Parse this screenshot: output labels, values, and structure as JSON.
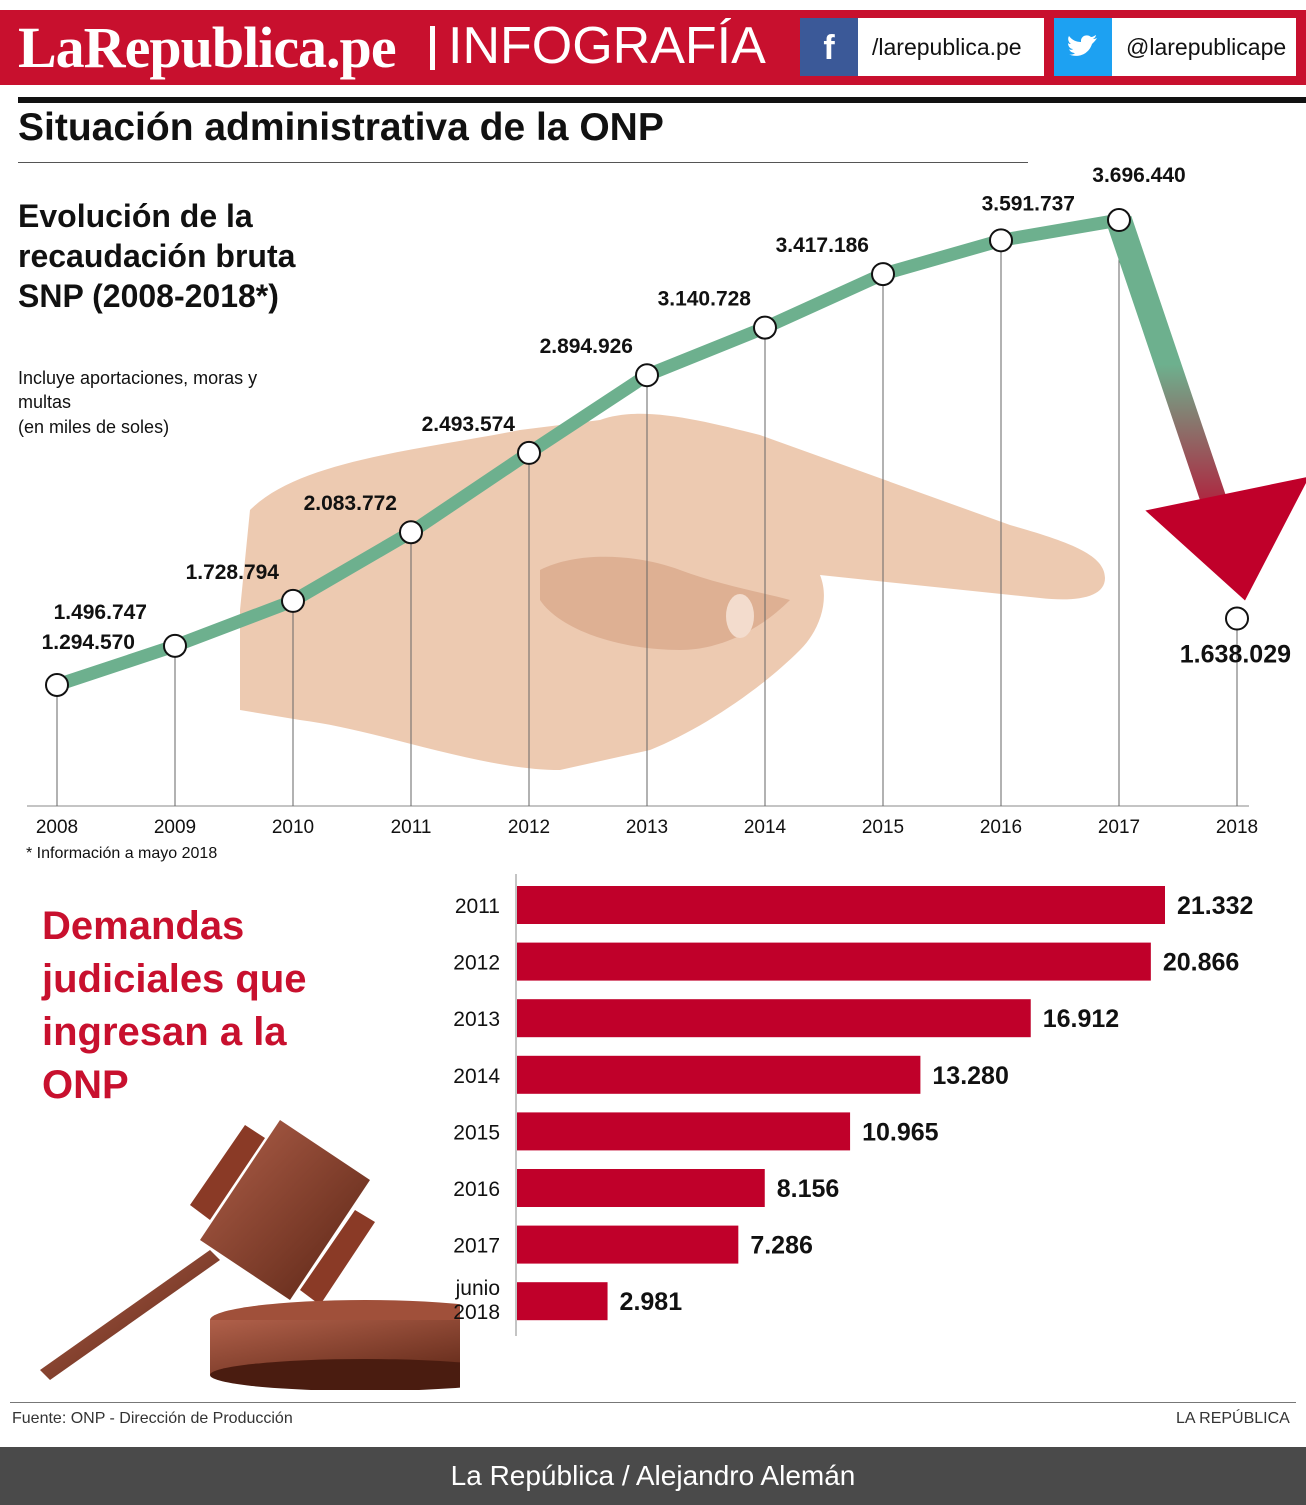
{
  "header": {
    "brand": "LaRepublica.pe",
    "section": "INFOGRAFÍA",
    "facebook_handle": "/larepublica.pe",
    "twitter_handle": "@larepublicape",
    "facebook_icon": "facebook-icon",
    "twitter_icon": "twitter-icon"
  },
  "colors": {
    "brand_red": "#c8102e",
    "line_green": "#6db08e",
    "bar_red": "#c0002a",
    "facebook_blue": "#3b5998",
    "twitter_blue": "#1da1f2"
  },
  "main_title": "Situación administrativa de la ONP",
  "chart_data": [
    {
      "type": "line",
      "title": "Evolución de la recaudación bruta SNP (2008-2018*)",
      "subtitle": "Incluye aportaciones, moras y multas",
      "unit_note": "(en miles de soles)",
      "footnote": "* Información a mayo 2018",
      "x": [
        "2008",
        "2009",
        "2010",
        "2011",
        "2012",
        "2013",
        "2014",
        "2015",
        "2016",
        "2017",
        "2018"
      ],
      "values": [
        1294570,
        1496747,
        1728794,
        2083772,
        2493574,
        2894926,
        3140728,
        3417186,
        3591737,
        3696440,
        1638029
      ],
      "labels": [
        "1.294.570",
        "1.496.747",
        "1.728.794",
        "2.083.772",
        "2.493.574",
        "2.894.926",
        "3.140.728",
        "3.417.186",
        "3.591.737",
        "3.696.440",
        "1.638.029"
      ],
      "ylim": [
        1000000,
        3800000
      ],
      "grid": false
    },
    {
      "type": "bar",
      "orientation": "horizontal",
      "title": "Demandas judiciales que ingresan a la ONP",
      "categories": [
        "2011",
        "2012",
        "2013",
        "2014",
        "2015",
        "2016",
        "2017",
        "junio 2018"
      ],
      "values": [
        21332,
        20866,
        16912,
        13280,
        10965,
        8156,
        7286,
        2981
      ],
      "labels": [
        "21.332",
        "20.866",
        "16.912",
        "13.280",
        "10.965",
        "8.156",
        "7.286",
        "2.981"
      ],
      "xlim": [
        0,
        21332
      ]
    }
  ],
  "footer": {
    "source": "Fuente: ONP - Dirección de Producción",
    "publisher": "LA REPÚBLICA",
    "credit": "La República / Alejandro Alemán"
  }
}
